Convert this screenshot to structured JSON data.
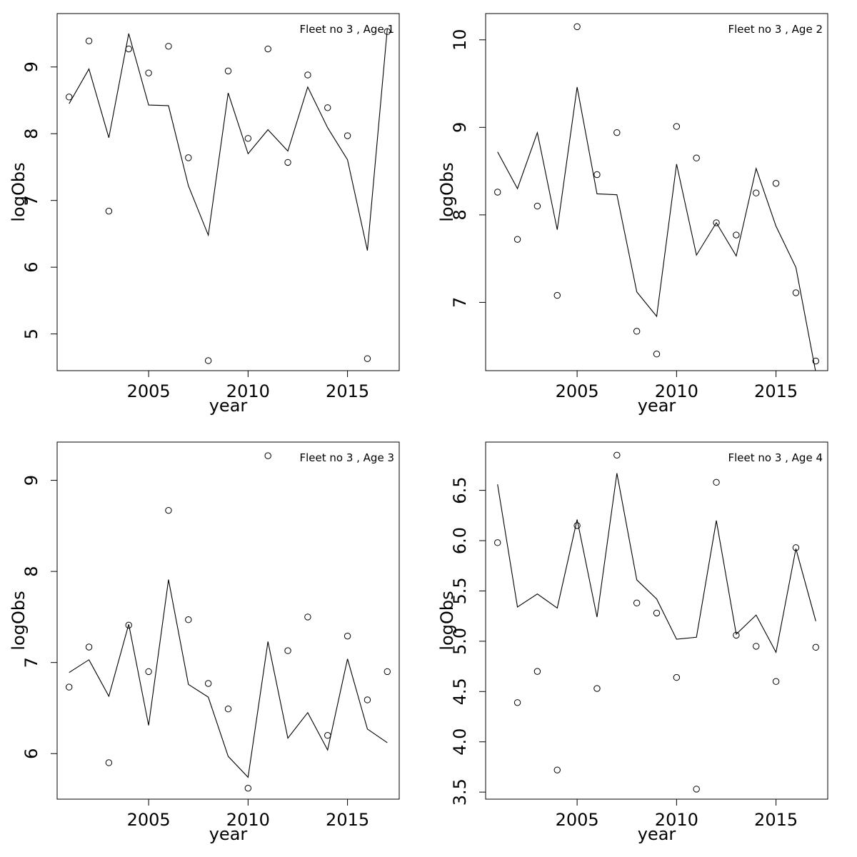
{
  "chart_data": [
    {
      "type": "line",
      "title": "",
      "legend": "Fleet no 3 , Age 1",
      "legend_position": "top-right",
      "xlabel": "year",
      "ylabel": "logObs",
      "xlim": [
        2000.4,
        2017.6
      ],
      "ylim": [
        4.45,
        9.8
      ],
      "xticks": [
        2005,
        2010,
        2015
      ],
      "yticks": [
        5,
        6,
        7,
        8,
        9
      ],
      "x": [
        2001,
        2002,
        2003,
        2004,
        2005,
        2006,
        2007,
        2008,
        2009,
        2010,
        2011,
        2012,
        2013,
        2014,
        2015,
        2016,
        2017
      ],
      "series": [
        {
          "kind": "points",
          "values": [
            8.55,
            9.39,
            6.84,
            9.27,
            8.91,
            9.31,
            7.64,
            4.6,
            8.94,
            7.93,
            9.27,
            7.57,
            8.88,
            8.39,
            7.97,
            4.63,
            9.53
          ]
        },
        {
          "kind": "line",
          "values": [
            8.45,
            8.97,
            7.94,
            9.5,
            8.43,
            8.42,
            7.22,
            6.48,
            8.61,
            7.7,
            8.06,
            7.74,
            8.7,
            8.09,
            7.61,
            6.25,
            9.57
          ]
        }
      ]
    },
    {
      "type": "line",
      "title": "",
      "legend": "Fleet no 3 , Age 2",
      "legend_position": "top-right",
      "xlabel": "year",
      "ylabel": "logObs",
      "xlim": [
        2000.4,
        2017.6
      ],
      "ylim": [
        6.22,
        10.3
      ],
      "xticks": [
        2005,
        2010,
        2015
      ],
      "yticks": [
        7,
        8,
        9,
        10
      ],
      "x": [
        2001,
        2002,
        2003,
        2004,
        2005,
        2006,
        2007,
        2008,
        2009,
        2010,
        2011,
        2012,
        2013,
        2014,
        2015,
        2016,
        2017
      ],
      "series": [
        {
          "kind": "points",
          "values": [
            8.26,
            7.72,
            8.1,
            7.08,
            10.15,
            8.46,
            8.94,
            6.67,
            6.41,
            9.01,
            8.65,
            7.91,
            7.77,
            8.25,
            8.36,
            7.11,
            6.33
          ]
        },
        {
          "kind": "line",
          "values": [
            8.72,
            8.3,
            8.94,
            7.83,
            9.46,
            8.24,
            8.23,
            7.12,
            6.84,
            8.58,
            7.54,
            7.91,
            7.53,
            8.53,
            7.87,
            7.4,
            6.2
          ]
        }
      ]
    },
    {
      "type": "line",
      "title": "",
      "legend": "Fleet no 3 , Age 3",
      "legend_position": "top-right",
      "xlabel": "year",
      "ylabel": "logObs",
      "xlim": [
        2000.4,
        2017.6
      ],
      "ylim": [
        5.5,
        9.42
      ],
      "xticks": [
        2005,
        2010,
        2015
      ],
      "yticks": [
        6,
        7,
        8,
        9
      ],
      "x": [
        2001,
        2002,
        2003,
        2004,
        2005,
        2006,
        2007,
        2008,
        2009,
        2010,
        2011,
        2012,
        2013,
        2014,
        2015,
        2016,
        2017
      ],
      "series": [
        {
          "kind": "points",
          "values": [
            6.73,
            7.17,
            5.9,
            7.41,
            6.9,
            8.67,
            7.47,
            6.77,
            6.49,
            5.62,
            9.27,
            7.13,
            7.5,
            6.2,
            7.29,
            6.59,
            6.9
          ]
        },
        {
          "kind": "line",
          "values": [
            6.89,
            7.03,
            6.63,
            7.42,
            6.31,
            7.91,
            6.76,
            6.62,
            5.97,
            5.74,
            7.23,
            6.17,
            6.45,
            6.04,
            7.04,
            6.27,
            6.12
          ]
        }
      ]
    },
    {
      "type": "line",
      "title": "",
      "legend": "Fleet no 3 , Age 4",
      "legend_position": "top-right",
      "xlabel": "year",
      "ylabel": "logObs",
      "xlim": [
        2000.4,
        2017.6
      ],
      "ylim": [
        3.43,
        6.98
      ],
      "xticks": [
        2005,
        2010,
        2015
      ],
      "yticks": [
        3.5,
        4.0,
        4.5,
        5.0,
        5.5,
        6.0,
        6.5
      ],
      "ytick_labels": [
        "3.5",
        "4.0",
        "4.5",
        "5.0",
        "5.5",
        "6.0",
        "6.5"
      ],
      "x": [
        2001,
        2002,
        2003,
        2004,
        2005,
        2006,
        2007,
        2008,
        2009,
        2010,
        2011,
        2012,
        2013,
        2014,
        2015,
        2016,
        2017
      ],
      "series": [
        {
          "kind": "points",
          "values": [
            5.98,
            4.39,
            4.7,
            3.72,
            6.15,
            4.53,
            6.85,
            5.38,
            5.28,
            4.64,
            3.53,
            6.58,
            5.06,
            4.95,
            4.6,
            5.93,
            4.94
          ]
        },
        {
          "kind": "line",
          "values": [
            6.56,
            5.34,
            5.47,
            5.33,
            6.21,
            5.24,
            6.67,
            5.61,
            5.42,
            5.02,
            5.04,
            6.2,
            5.07,
            5.26,
            4.89,
            5.92,
            5.2
          ]
        }
      ]
    }
  ]
}
